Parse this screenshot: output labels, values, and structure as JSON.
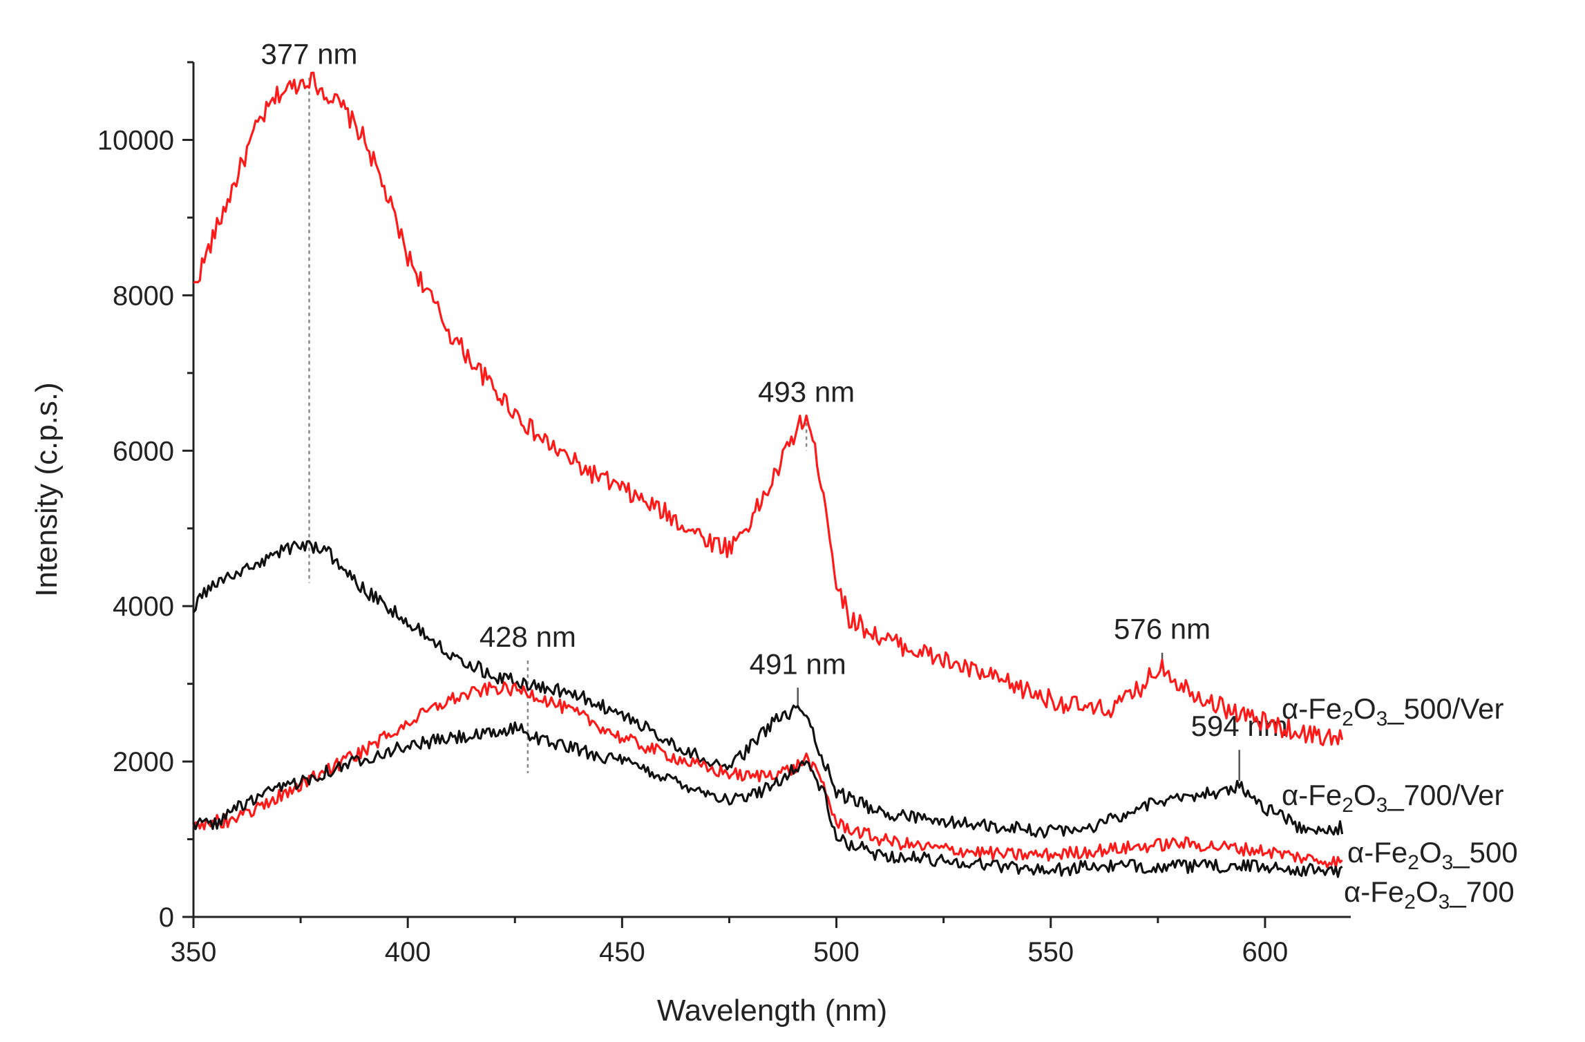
{
  "chart_data": {
    "type": "line",
    "title": "",
    "xlabel": "Wavelength (nm)",
    "ylabel": "Intensity (c.p.s.)",
    "xlim": [
      350,
      620
    ],
    "ylim": [
      0,
      11000
    ],
    "xticks": [
      350,
      400,
      450,
      500,
      550,
      600
    ],
    "yticks": [
      0,
      2000,
      4000,
      6000,
      8000,
      10000
    ],
    "grid": false,
    "colors": {
      "red": "#ff1a1a",
      "black": "#111111",
      "axis": "#222222",
      "dotted": "#888888"
    },
    "series": [
      {
        "name": "α-Fe2O3_500/Ver",
        "label_parts": [
          "α-Fe",
          "2",
          "O",
          "3",
          "_500/Ver"
        ],
        "color": "#ff1a1a",
        "x": [
          350,
          355,
          360,
          365,
          370,
          377,
          385,
          390,
          395,
          400,
          410,
          420,
          430,
          440,
          450,
          460,
          470,
          475,
          480,
          485,
          490,
          493,
          497,
          500,
          503,
          510,
          520,
          530,
          540,
          550,
          560,
          565,
          570,
          576,
          580,
          590,
          600,
          610,
          618
        ],
        "values": [
          8100,
          8800,
          9500,
          10200,
          10600,
          10800,
          10400,
          10000,
          9300,
          8500,
          7500,
          6800,
          6200,
          5800,
          5500,
          5200,
          4850,
          4750,
          5100,
          5600,
          6200,
          6450,
          5500,
          4300,
          3850,
          3600,
          3400,
          3200,
          3000,
          2800,
          2650,
          2700,
          2900,
          3250,
          3000,
          2700,
          2500,
          2350,
          2300
        ]
      },
      {
        "name": "α-Fe2O3_700/Ver",
        "label_parts": [
          "α-Fe",
          "2",
          "O",
          "3",
          "_700/Ver"
        ],
        "color": "#111111",
        "x": [
          350,
          355,
          360,
          365,
          370,
          375,
          380,
          385,
          390,
          400,
          410,
          420,
          428,
          440,
          450,
          460,
          470,
          475,
          480,
          485,
          490,
          491,
          495,
          500,
          510,
          520,
          530,
          540,
          550,
          560,
          570,
          580,
          590,
          594,
          600,
          610,
          618
        ],
        "values": [
          4000,
          4300,
          4400,
          4550,
          4700,
          4800,
          4750,
          4500,
          4200,
          3800,
          3400,
          3100,
          3000,
          2850,
          2600,
          2300,
          2000,
          1900,
          2200,
          2500,
          2650,
          2750,
          2300,
          1600,
          1350,
          1250,
          1200,
          1150,
          1100,
          1150,
          1400,
          1550,
          1600,
          1700,
          1400,
          1100,
          1150
        ]
      },
      {
        "name": "α-Fe2O3_500",
        "label_parts": [
          "α-Fe",
          "2",
          "O",
          "3",
          "_500"
        ],
        "color": "#ff1a1a",
        "x": [
          350,
          360,
          370,
          380,
          390,
          400,
          410,
          420,
          428,
          440,
          450,
          460,
          470,
          480,
          490,
          493,
          497,
          500,
          510,
          520,
          530,
          540,
          550,
          560,
          570,
          580,
          590,
          600,
          610,
          618
        ],
        "values": [
          1200,
          1250,
          1550,
          1850,
          2150,
          2500,
          2800,
          2950,
          2900,
          2600,
          2300,
          2100,
          1900,
          1800,
          1900,
          2050,
          1700,
          1200,
          1000,
          900,
          850,
          800,
          800,
          850,
          900,
          950,
          900,
          850,
          750,
          700
        ]
      },
      {
        "name": "α-Fe2O3_700",
        "label_parts": [
          "α-Fe",
          "2",
          "O",
          "3",
          "_700"
        ],
        "color": "#111111",
        "x": [
          350,
          355,
          360,
          370,
          380,
          390,
          400,
          410,
          420,
          426,
          430,
          440,
          450,
          460,
          470,
          475,
          480,
          485,
          490,
          493,
          497,
          500,
          510,
          520,
          530,
          540,
          550,
          560,
          570,
          580,
          590,
          600,
          610,
          618
        ],
        "values": [
          1200,
          1200,
          1400,
          1650,
          1850,
          2050,
          2200,
          2300,
          2350,
          2450,
          2300,
          2150,
          2000,
          1800,
          1600,
          1500,
          1550,
          1700,
          1900,
          2000,
          1600,
          1000,
          800,
          750,
          700,
          650,
          600,
          650,
          650,
          650,
          650,
          650,
          600,
          600
        ]
      }
    ],
    "annotations": [
      {
        "text": "377 nm",
        "x": 377,
        "peak_y": 10800,
        "line_to": 4300,
        "style": "dotted"
      },
      {
        "text": "493 nm",
        "x": 493,
        "peak_y": 6450,
        "line_to": 6000,
        "style": "dotted"
      },
      {
        "text": "428 nm",
        "x": 428,
        "peak_y": 3300,
        "line_to": 1850,
        "style": "dotted"
      },
      {
        "text": "491 nm",
        "x": 491,
        "peak_y": 2950,
        "line_to": 2700,
        "style": "solid"
      },
      {
        "text": "576 nm",
        "x": 576,
        "peak_y": 3400,
        "line_to": 3200,
        "style": "solid"
      },
      {
        "text": "594 nm",
        "x": 594,
        "peak_y": 2150,
        "line_to": 1750,
        "style": "solid"
      }
    ]
  }
}
